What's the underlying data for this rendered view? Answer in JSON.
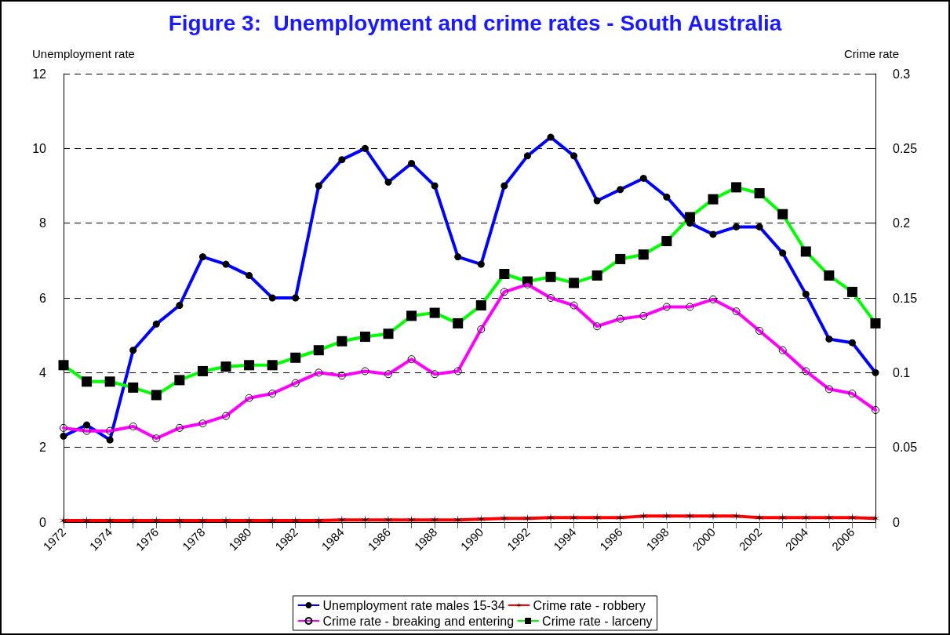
{
  "chart_data": {
    "type": "line",
    "title": "Figure 3:  Unemployment and crime rates - South Australia",
    "ylabel": "Unemployment rate",
    "y2label": "Crime rate",
    "categories": [
      "1972",
      null,
      "1974",
      null,
      "1976",
      null,
      "1978",
      null,
      "1980",
      null,
      "1982",
      null,
      "1984",
      null,
      "1986",
      null,
      "1988",
      null,
      "1990",
      null,
      "1992",
      null,
      "1994",
      null,
      "1996",
      null,
      "1998",
      null,
      "2000",
      null,
      "2002",
      null,
      "2004",
      null,
      "2006",
      null
    ],
    "ylim": [
      0,
      12
    ],
    "yticks": [
      0,
      2,
      4,
      6,
      8,
      10,
      12
    ],
    "y2lim": [
      0,
      0.3
    ],
    "y2ticks": [
      0,
      0.05,
      0.1,
      0.15,
      0.2,
      0.25,
      0.3
    ],
    "grid": "y",
    "legend": "bottom",
    "line_style": "solid",
    "series": [
      {
        "name": "Unemployment rate males 15-34",
        "color": "#0000ff",
        "marker": "circle",
        "values": [
          2.3,
          2.6,
          2.2,
          4.6,
          5.3,
          5.8,
          7.1,
          6.9,
          6.6,
          6.0,
          6.0,
          9.0,
          9.7,
          10.0,
          9.1,
          9.6,
          9.0,
          7.1,
          6.9,
          9.0,
          9.8,
          10.3,
          9.8,
          8.6,
          8.9,
          9.2,
          8.7,
          8.0,
          7.7,
          7.9,
          7.9,
          7.2,
          6.1,
          4.9,
          4.8,
          4.0
        ]
      },
      {
        "name": "Crime rate - robbery",
        "color": "#ff0000",
        "marker": "cross",
        "axis": "y2",
        "values": [
          0.001,
          0.001,
          0.001,
          0.001,
          0.001,
          0.001,
          0.001,
          0.001,
          0.001,
          0.001,
          0.001,
          0.001,
          0.0015,
          0.0015,
          0.0015,
          0.0015,
          0.0015,
          0.0015,
          0.002,
          0.0025,
          0.0025,
          0.003,
          0.003,
          0.003,
          0.003,
          0.004,
          0.004,
          0.004,
          0.004,
          0.004,
          0.003,
          0.003,
          0.003,
          0.003,
          0.003,
          0.0025
        ]
      },
      {
        "name": "Crime rate - breaking and entering",
        "color": "#ff00ff",
        "marker": "circle",
        "axis": "y2",
        "values": [
          0.063,
          0.061,
          0.061,
          0.064,
          0.056,
          0.063,
          0.066,
          0.071,
          0.083,
          0.086,
          0.093,
          0.1,
          0.098,
          0.101,
          0.099,
          0.109,
          0.099,
          0.101,
          0.129,
          0.154,
          0.159,
          0.15,
          0.145,
          0.131,
          0.136,
          0.138,
          0.144,
          0.144,
          0.149,
          0.141,
          0.128,
          0.115,
          0.101,
          0.089,
          0.086,
          0.075
        ]
      },
      {
        "name": "Crime rate - larceny",
        "color": "#00ff00",
        "marker": "square",
        "axis": "y2",
        "values": [
          0.105,
          0.094,
          0.094,
          0.09,
          0.085,
          0.095,
          0.101,
          0.104,
          0.105,
          0.105,
          0.11,
          0.115,
          0.121,
          0.124,
          0.126,
          0.138,
          0.14,
          0.133,
          0.145,
          0.166,
          0.161,
          0.164,
          0.16,
          0.165,
          0.176,
          0.179,
          0.188,
          0.204,
          0.216,
          0.224,
          0.22,
          0.206,
          0.181,
          0.165,
          0.154,
          0.133
        ]
      }
    ]
  }
}
